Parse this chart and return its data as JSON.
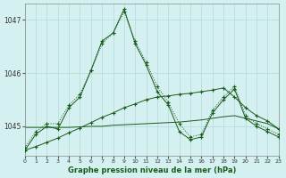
{
  "title": "Graphe pression niveau de la mer (hPa)",
  "bg_color": "#d4f0f0",
  "grid_color": "#b8dede",
  "line_color": "#1a5c1a",
  "xlim": [
    0,
    23
  ],
  "ylim": [
    1044.45,
    1047.3
  ],
  "yticks": [
    1045,
    1046,
    1047
  ],
  "xticks": [
    0,
    1,
    2,
    3,
    4,
    5,
    6,
    7,
    8,
    9,
    10,
    11,
    12,
    13,
    14,
    15,
    16,
    17,
    18,
    19,
    20,
    21,
    22,
    23
  ],
  "series_dotted": {
    "x": [
      0,
      1,
      2,
      3,
      4,
      5,
      6,
      7,
      8,
      9,
      10,
      11,
      12,
      13,
      14,
      15,
      16,
      17,
      18,
      19,
      20,
      21,
      22,
      23
    ],
    "y": [
      1044.6,
      1044.9,
      1045.05,
      1045.05,
      1045.4,
      1045.6,
      1046.05,
      1046.55,
      1046.75,
      1047.15,
      1046.6,
      1046.2,
      1045.75,
      1045.45,
      1045.05,
      1044.8,
      1044.85,
      1045.3,
      1045.55,
      1045.75,
      1045.2,
      1045.05,
      1044.95,
      1044.85
    ]
  },
  "series_solid_peak": {
    "x": [
      0,
      1,
      2,
      3,
      4,
      5,
      6,
      7,
      8,
      9,
      10,
      11,
      12,
      13,
      14,
      15,
      16,
      17,
      18,
      19,
      20,
      21,
      22,
      23
    ],
    "y": [
      1044.55,
      1044.85,
      1045.0,
      1044.95,
      1045.35,
      1045.55,
      1046.05,
      1046.6,
      1046.75,
      1047.2,
      1046.55,
      1046.15,
      1045.65,
      1045.4,
      1044.9,
      1044.75,
      1044.8,
      1045.25,
      1045.5,
      1045.7,
      1045.15,
      1045.0,
      1044.9,
      1044.8
    ]
  },
  "series_gradual": {
    "x": [
      0,
      1,
      2,
      3,
      4,
      5,
      6,
      7,
      8,
      9,
      10,
      11,
      12,
      13,
      14,
      15,
      16,
      17,
      18,
      19,
      20,
      21,
      22,
      23
    ],
    "y": [
      1044.55,
      1044.62,
      1044.7,
      1044.78,
      1044.88,
      1044.97,
      1045.07,
      1045.17,
      1045.25,
      1045.35,
      1045.42,
      1045.5,
      1045.55,
      1045.57,
      1045.6,
      1045.62,
      1045.65,
      1045.68,
      1045.72,
      1045.55,
      1045.35,
      1045.2,
      1045.1,
      1044.95
    ]
  },
  "series_flat": {
    "x": [
      0,
      1,
      2,
      3,
      4,
      5,
      6,
      7,
      8,
      9,
      10,
      11,
      12,
      13,
      14,
      15,
      16,
      17,
      18,
      19,
      20,
      21,
      22,
      23
    ],
    "y": [
      1044.98,
      1044.98,
      1044.98,
      1044.98,
      1044.98,
      1044.99,
      1045.0,
      1045.0,
      1045.02,
      1045.03,
      1045.04,
      1045.05,
      1045.06,
      1045.07,
      1045.08,
      1045.1,
      1045.12,
      1045.15,
      1045.18,
      1045.2,
      1045.15,
      1045.1,
      1045.05,
      1044.95
    ]
  }
}
